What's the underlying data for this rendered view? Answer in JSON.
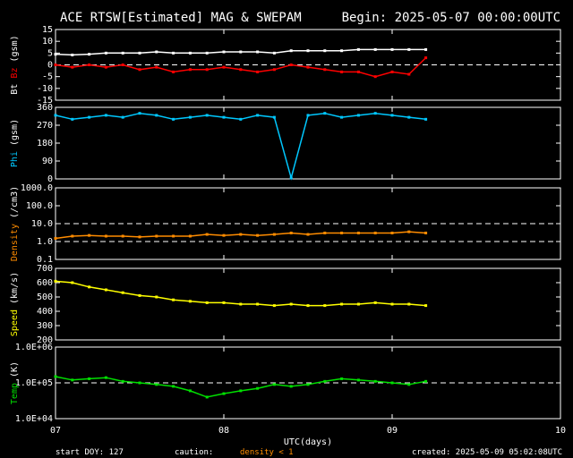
{
  "header": {
    "title": "ACE RTSW[Estimated] MAG & SWEPAM",
    "begin": "Begin: 2025-05-07 00:00:00UTC"
  },
  "footer": {
    "start_doy": "start DOY: 127",
    "caution": "caution:",
    "density_note": "density < 1",
    "created": "created: 2025-05-09 05:02:08UTC"
  },
  "colors": {
    "bt": "#ffffff",
    "bz": "#ff0000",
    "phi": "#00c8ff",
    "density": "#ff8c00",
    "speed": "#ffff00",
    "temp": "#00e000",
    "axis": "#ffffff",
    "caution": "#ff8c00"
  },
  "chart_data": [
    {
      "type": "line",
      "panel": "mag",
      "ylabel": [
        "Bt",
        "Bz",
        "(gsm)"
      ],
      "ylim": [
        -15,
        15
      ],
      "yticks": [
        "15",
        "10",
        "5",
        "0",
        "-5",
        "-10",
        "-15"
      ],
      "ytick_values": [
        15,
        10,
        5,
        0,
        -5,
        -10,
        -15
      ],
      "dashed_lines": [
        0
      ],
      "series": [
        {
          "name": "Bt",
          "x": [
            0,
            0.1,
            0.2,
            0.3,
            0.4,
            0.5,
            0.6,
            0.7,
            0.8,
            0.9,
            1.0,
            1.1,
            1.2,
            1.3,
            1.4,
            1.5,
            1.6,
            1.7,
            1.8,
            1.9,
            2.0,
            2.1,
            2.2
          ],
          "values": [
            4.5,
            4.2,
            4.5,
            5,
            5,
            5,
            5.5,
            5,
            5,
            5,
            5.5,
            5.5,
            5.5,
            5,
            6,
            6,
            6,
            6,
            6.5,
            6.5,
            6.5,
            6.5,
            6.5
          ]
        },
        {
          "name": "Bz",
          "x": [
            0,
            0.1,
            0.2,
            0.3,
            0.4,
            0.5,
            0.6,
            0.7,
            0.8,
            0.9,
            1.0,
            1.1,
            1.2,
            1.3,
            1.4,
            1.5,
            1.6,
            1.7,
            1.8,
            1.9,
            2.0,
            2.1,
            2.2
          ],
          "values": [
            0,
            -1,
            0,
            -1,
            0,
            -2,
            -1,
            -3,
            -2,
            -2,
            -1,
            -2,
            -3,
            -2,
            0,
            -1,
            -2,
            -3,
            -3,
            -5,
            -3,
            -4,
            3
          ]
        }
      ]
    },
    {
      "type": "scatter",
      "panel": "phi",
      "ylabel": [
        "Phi",
        "(gsm)"
      ],
      "ylim": [
        0,
        360
      ],
      "yticks": [
        "360",
        "270",
        "180",
        "90",
        "0"
      ],
      "ytick_values": [
        360,
        270,
        180,
        90,
        0
      ],
      "series": [
        {
          "name": "Phi",
          "x": [
            0,
            0.1,
            0.2,
            0.3,
            0.4,
            0.5,
            0.6,
            0.7,
            0.8,
            0.9,
            1.0,
            1.1,
            1.2,
            1.3,
            1.4,
            1.5,
            1.6,
            1.7,
            1.8,
            1.9,
            2.0,
            2.1,
            2.2
          ],
          "values": [
            320,
            300,
            310,
            320,
            310,
            330,
            320,
            300,
            310,
            320,
            310,
            300,
            320,
            310,
            5,
            320,
            330,
            310,
            320,
            330,
            320,
            310,
            300
          ]
        }
      ]
    },
    {
      "type": "scatter",
      "panel": "density",
      "ylabel": [
        "Density",
        "(/cm3)"
      ],
      "ylim": [
        0.1,
        1000
      ],
      "log": true,
      "yticks": [
        "1000.0",
        "100.0",
        "10.0",
        "1.0",
        "0.1"
      ],
      "ytick_values": [
        1000,
        100,
        10,
        1,
        0.1
      ],
      "dashed_lines": [
        10,
        1
      ],
      "series": [
        {
          "name": "Density",
          "x": [
            0,
            0.1,
            0.2,
            0.3,
            0.4,
            0.5,
            0.6,
            0.7,
            0.8,
            0.9,
            1.0,
            1.1,
            1.2,
            1.3,
            1.4,
            1.5,
            1.6,
            1.7,
            1.8,
            1.9,
            2.0,
            2.1,
            2.2
          ],
          "values": [
            1.5,
            2,
            2.2,
            2,
            2,
            1.8,
            2,
            2,
            2,
            2.5,
            2.2,
            2.5,
            2.2,
            2.5,
            3,
            2.5,
            3,
            3,
            3,
            3,
            3,
            3.5,
            3
          ]
        }
      ]
    },
    {
      "type": "scatter",
      "panel": "speed",
      "ylabel": [
        "Speed",
        "(km/s)"
      ],
      "ylim": [
        200,
        700
      ],
      "yticks": [
        "700",
        "600",
        "500",
        "400",
        "300",
        "200"
      ],
      "ytick_values": [
        700,
        600,
        500,
        400,
        300,
        200
      ],
      "series": [
        {
          "name": "Speed",
          "x": [
            0,
            0.1,
            0.2,
            0.3,
            0.4,
            0.5,
            0.6,
            0.7,
            0.8,
            0.9,
            1.0,
            1.1,
            1.2,
            1.3,
            1.4,
            1.5,
            1.6,
            1.7,
            1.8,
            1.9,
            2.0,
            2.1,
            2.2
          ],
          "values": [
            610,
            600,
            570,
            550,
            530,
            510,
            500,
            480,
            470,
            460,
            460,
            450,
            450,
            440,
            450,
            440,
            440,
            450,
            450,
            460,
            450,
            450,
            440
          ]
        }
      ]
    },
    {
      "type": "scatter",
      "panel": "temp",
      "ylabel": [
        "Temp",
        "(K)"
      ],
      "ylim": [
        10000,
        1000000
      ],
      "log": true,
      "yticks": [
        "1.0E+06",
        "1.0E+05",
        "1.0E+04"
      ],
      "ytick_values": [
        1000000,
        100000,
        10000
      ],
      "dashed_lines": [
        100000
      ],
      "series": [
        {
          "name": "Temp",
          "x": [
            0,
            0.1,
            0.2,
            0.3,
            0.4,
            0.5,
            0.6,
            0.7,
            0.8,
            0.9,
            1.0,
            1.1,
            1.2,
            1.3,
            1.4,
            1.5,
            1.6,
            1.7,
            1.8,
            1.9,
            2.0,
            2.1,
            2.2
          ],
          "values": [
            150000,
            120000,
            130000,
            140000,
            110000,
            100000,
            90000,
            80000,
            60000,
            40000,
            50000,
            60000,
            70000,
            90000,
            80000,
            90000,
            110000,
            130000,
            120000,
            110000,
            100000,
            90000,
            110000
          ]
        }
      ]
    }
  ],
  "x_axis": {
    "xlim": [
      0,
      3
    ],
    "ticks": [
      "07",
      "08",
      "09",
      "10"
    ],
    "tick_values": [
      0,
      1,
      2,
      3
    ],
    "xlabel": "UTC(days)"
  }
}
